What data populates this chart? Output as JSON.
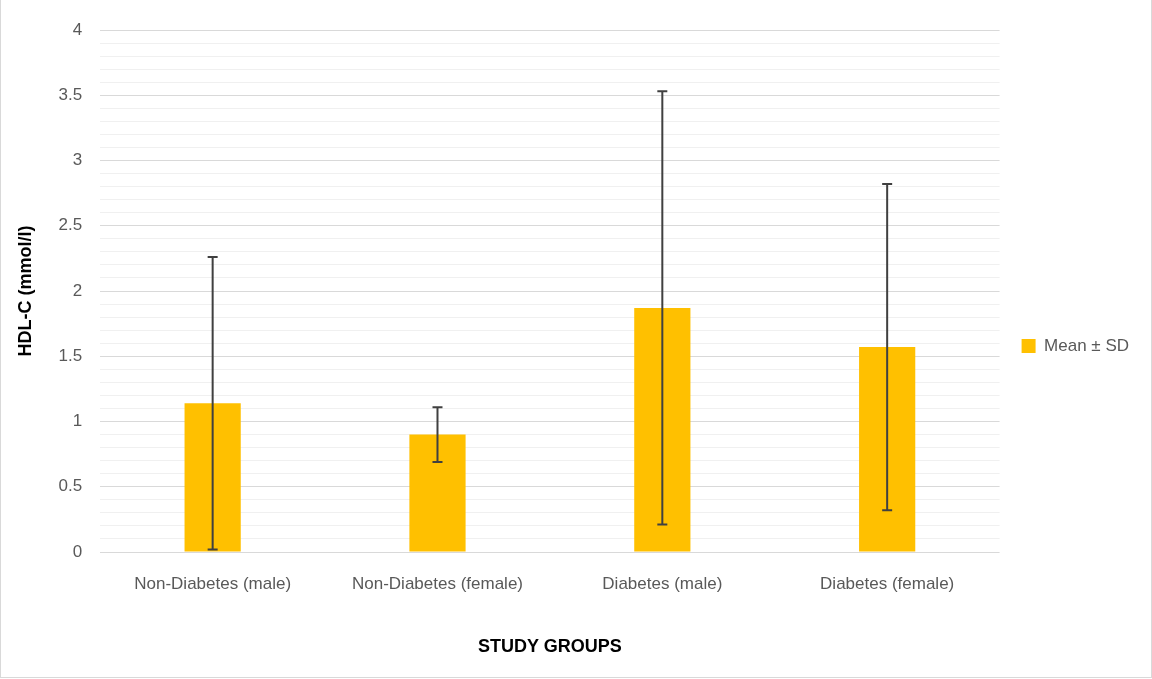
{
  "chart_data": {
    "type": "bar",
    "xlabel": "STUDY GROUPS",
    "ylabel": "HDL-C (mmol/l)",
    "categories": [
      "Non-Diabetes (male)",
      "Non-Diabetes (female)",
      "Diabetes (male)",
      "Diabetes (female)"
    ],
    "series": [
      {
        "name": "Mean ± SD",
        "color": "#ffc000",
        "values": [
          1.14,
          0.9,
          1.87,
          1.57
        ],
        "errors": [
          1.12,
          0.21,
          1.66,
          1.25
        ]
      }
    ],
    "ylim": [
      0,
      4
    ],
    "yticks": [
      0,
      {
        "value": 0.1,
        "label": null
      },
      {
        "value": 0.2,
        "label": null
      },
      {
        "value": 0.3,
        "label": null
      },
      {
        "value": 0.4,
        "label": null
      },
      0.5,
      {
        "value": 0.6,
        "label": null
      },
      {
        "value": 0.7,
        "label": null
      },
      {
        "value": 0.8,
        "label": null
      },
      {
        "value": 0.9,
        "label": null
      },
      1,
      {
        "value": 1.1,
        "label": null
      },
      {
        "value": 1.2,
        "label": null
      },
      {
        "value": 1.3,
        "label": null
      },
      {
        "value": 1.4,
        "label": null
      },
      1.5,
      {
        "value": 1.6,
        "label": null
      },
      {
        "value": 1.7,
        "label": null
      },
      {
        "value": 1.8,
        "label": null
      },
      {
        "value": 1.9,
        "label": null
      },
      2,
      {
        "value": 2.1,
        "label": null
      },
      {
        "value": 2.2,
        "label": null
      },
      {
        "value": 2.3,
        "label": null
      },
      {
        "value": 2.4,
        "label": null
      },
      2.5,
      {
        "value": 2.6,
        "label": null
      },
      {
        "value": 2.7,
        "label": null
      },
      {
        "value": 2.8,
        "label": null
      },
      {
        "value": 2.9,
        "label": null
      },
      3,
      {
        "value": 3.1,
        "label": null
      },
      {
        "value": 3.2,
        "label": null
      },
      {
        "value": 3.3,
        "label": null
      },
      {
        "value": 3.4,
        "label": null
      },
      3.5,
      {
        "value": 3.6,
        "label": null
      },
      {
        "value": 3.7,
        "label": null
      },
      {
        "value": 3.8,
        "label": null
      },
      {
        "value": 3.9,
        "label": null
      },
      4
    ],
    "grid": true,
    "legend": "right"
  }
}
